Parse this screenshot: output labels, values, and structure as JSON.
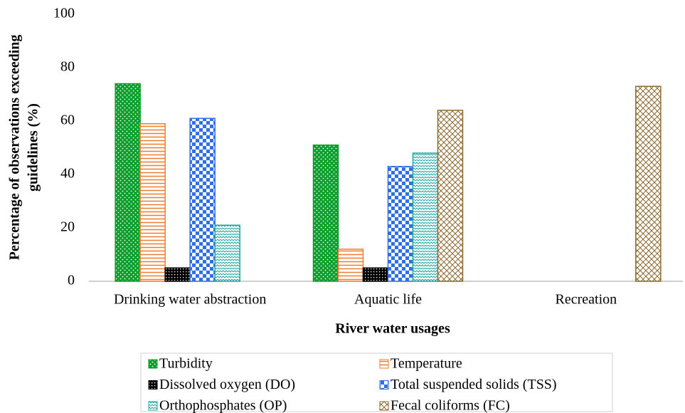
{
  "chart_data": {
    "type": "bar",
    "y_label": [
      "Percentage of observations exceeding",
      "guidelines (%)"
    ],
    "x_label": "River water usages",
    "categories": [
      "Drinking water abstraction",
      "Aquatic life",
      "Recreation"
    ],
    "series": [
      {
        "name": "Turbidity",
        "color": "#0a9e2a",
        "pattern": "dots",
        "values": [
          74,
          51,
          null
        ]
      },
      {
        "name": "Temperature",
        "color": "#ed7d31",
        "pattern": "hlines",
        "values": [
          59,
          12,
          null
        ]
      },
      {
        "name": "Dissolved oxygen (DO)",
        "color": "#000000",
        "pattern": "crosshatch",
        "values": [
          5,
          5,
          null
        ]
      },
      {
        "name": "Total suspended solids (TSS)",
        "color": "#2f6fe8",
        "pattern": "checker",
        "values": [
          61,
          43,
          null
        ]
      },
      {
        "name": "Orthophosphates (OP)",
        "color": "#21a7a0",
        "pattern": "waves",
        "values": [
          21,
          48,
          null
        ]
      },
      {
        "name": "Fecal coliforms (FC)",
        "color": "#8b6b2e",
        "pattern": "diagcross",
        "values": [
          null,
          64,
          73
        ]
      }
    ],
    "ylim": [
      0,
      100
    ],
    "yticks": [
      0,
      20,
      40,
      60,
      80,
      100
    ],
    "grid": false,
    "legend": "bottom"
  }
}
